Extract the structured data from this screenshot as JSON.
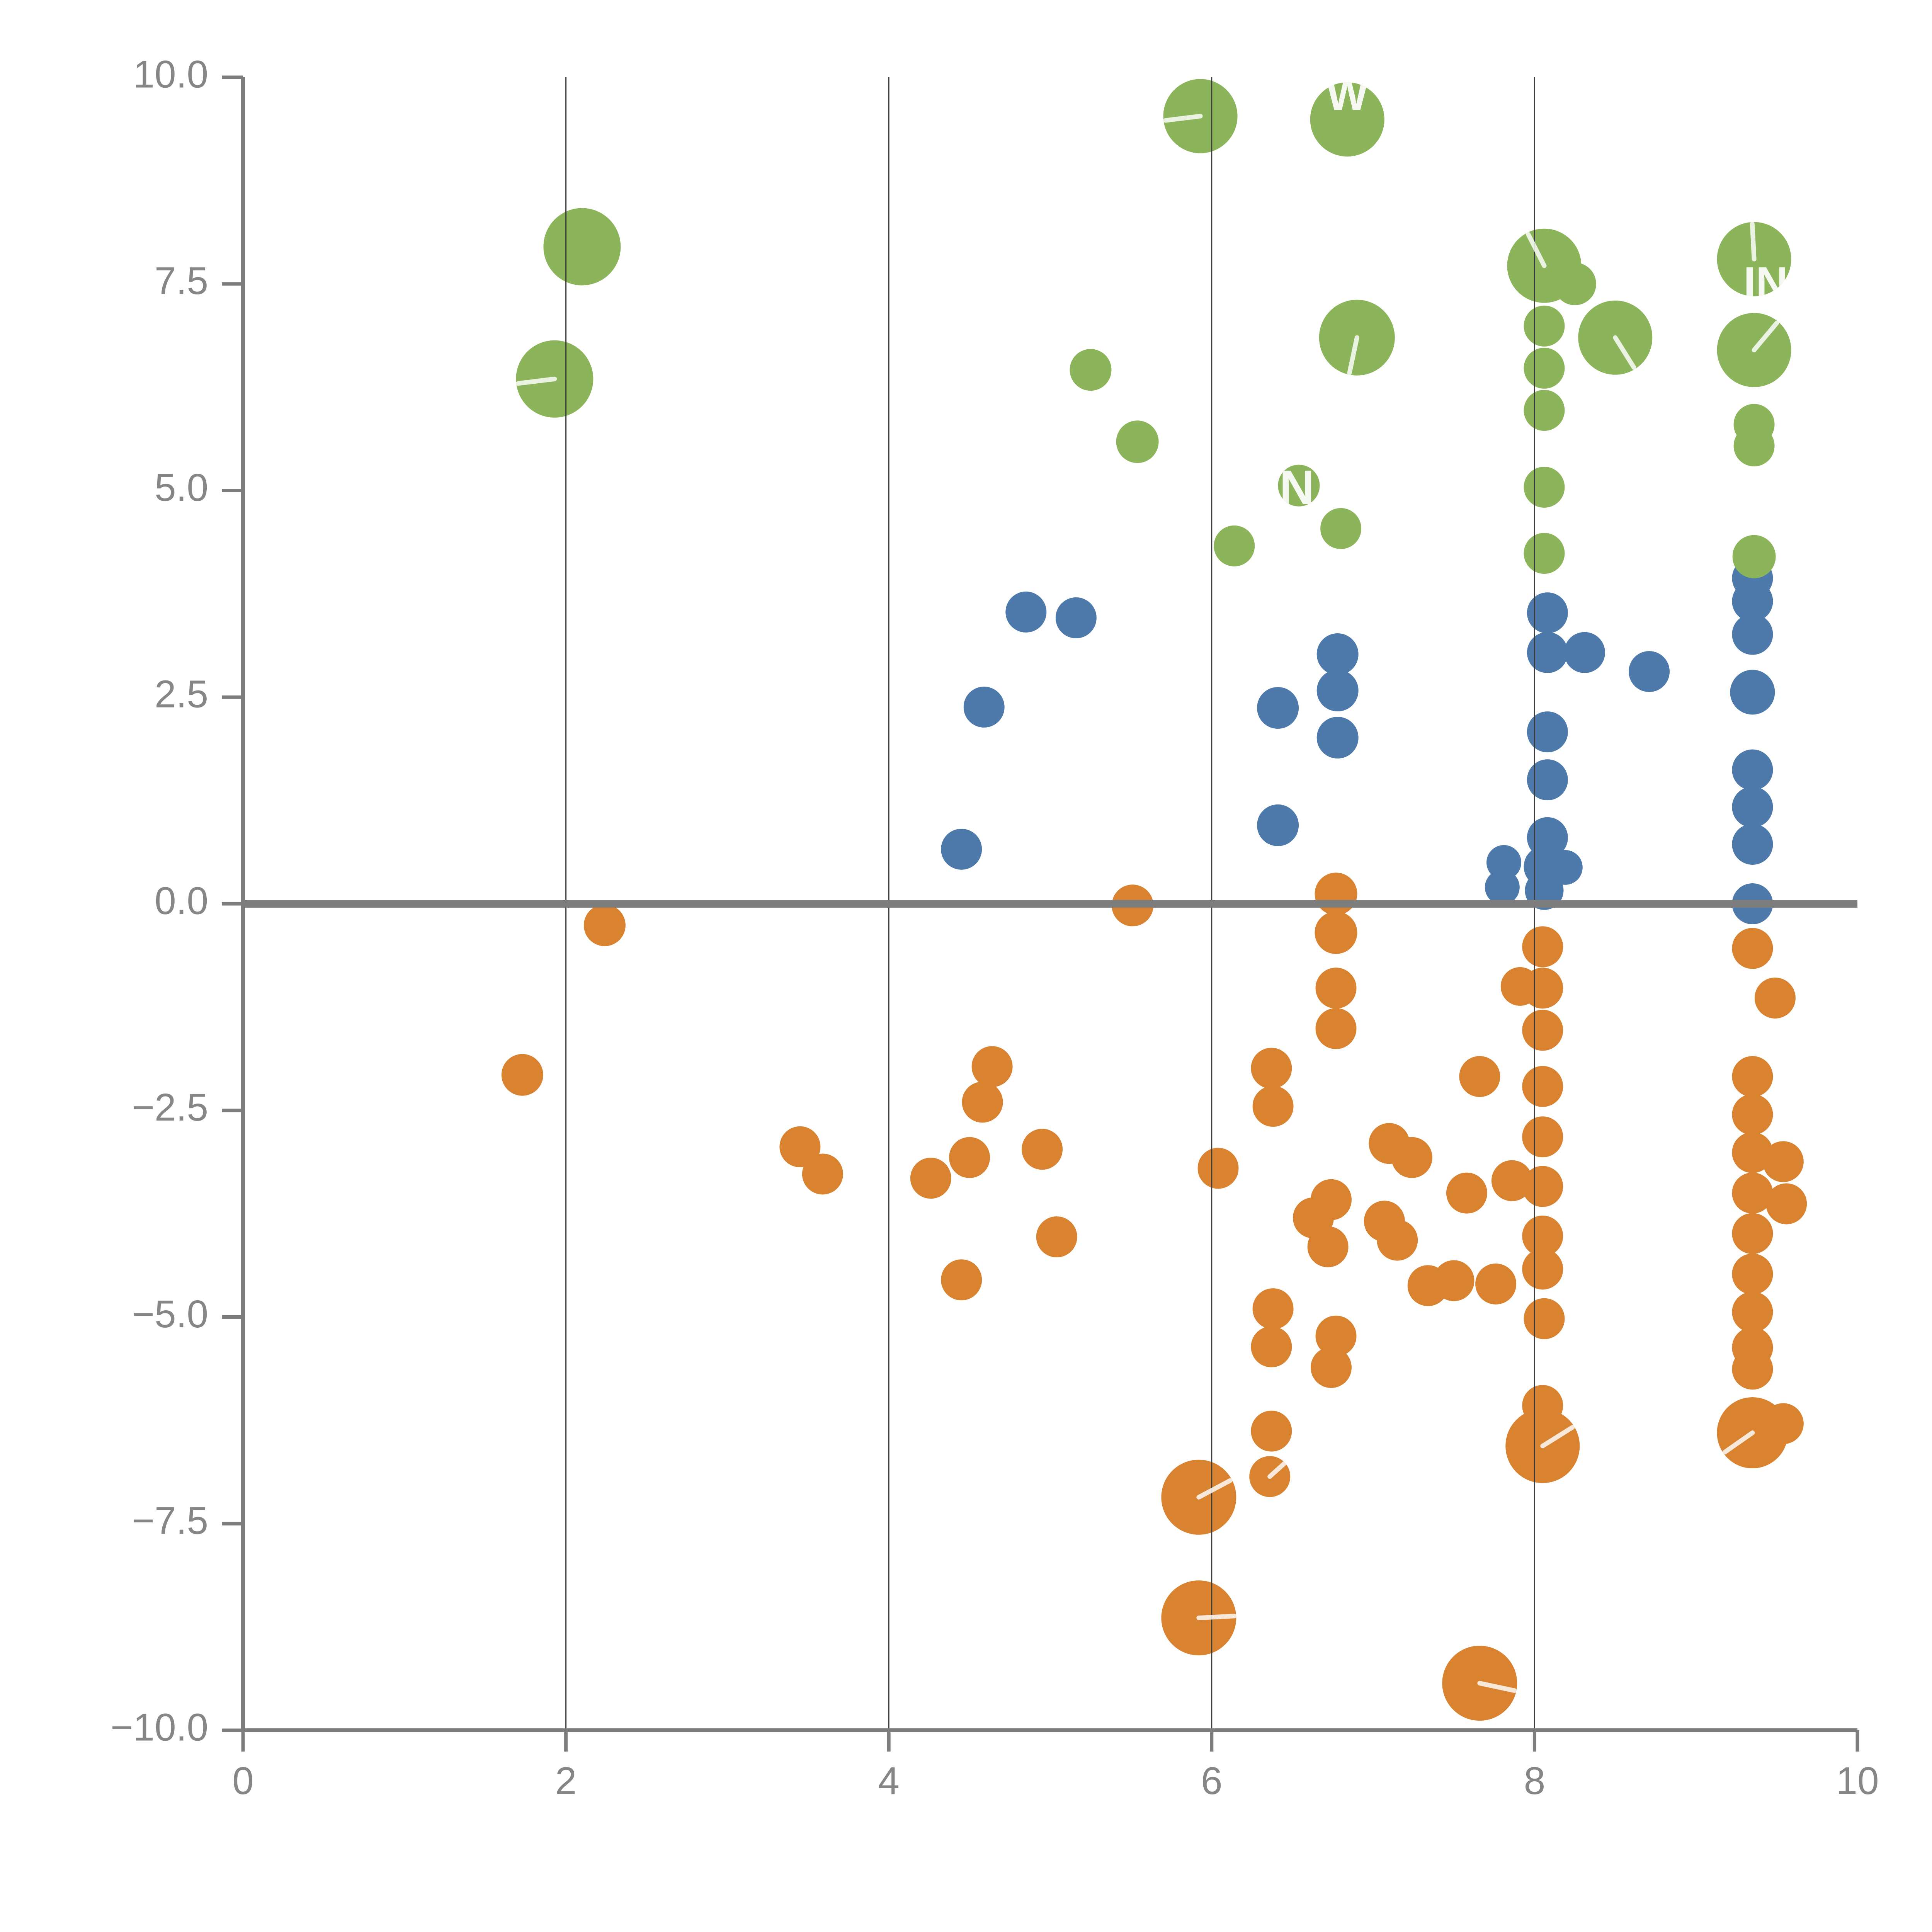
{
  "page": {
    "background": "#ffffff"
  },
  "chart_data": {
    "type": "scatter",
    "title": "",
    "xlabel": "",
    "ylabel": "",
    "legend": "none",
    "x_axis": {
      "domain": [
        0,
        10
      ],
      "ticks": [
        0,
        2,
        4,
        6,
        8,
        10
      ],
      "tick_labels": [
        "0",
        "2",
        "4",
        "6",
        "8",
        "10"
      ],
      "gridlines": [
        2,
        4,
        6,
        8
      ]
    },
    "y_axis": {
      "domain": [
        -10,
        10
      ],
      "ticks": [
        10,
        7.5,
        5,
        2.5,
        0,
        -2.5,
        -5,
        -7.5,
        -10
      ],
      "tick_labels": [
        "10.0",
        "7.5",
        "5.0",
        "2.5",
        "0.0",
        "−2.5",
        "−5.0",
        "−7.5",
        "−10.0"
      ]
    },
    "zero_line_y": 0,
    "colors": {
      "green": "#8cb45a",
      "blue": "#4d79ab",
      "orange": "#d9822f",
      "axis": "#7d7d7d",
      "grid": "#3a3a3a",
      "tick_label": "#868686",
      "hand": "#ffffff"
    },
    "point_format": [
      "x",
      "y",
      "radius_px",
      "hand_angle_deg_or_null",
      "white_text",
      "text_dx",
      "text_dy",
      "text_size"
    ],
    "series": [
      {
        "name": "orange",
        "color_key": "orange",
        "points": [
          [
            5.51,
            -0.02,
            54
          ],
          [
            2.24,
            -0.26,
            54
          ],
          [
            1.73,
            -2.07,
            54
          ],
          [
            3.45,
            -2.94,
            53
          ],
          [
            3.59,
            -3.27,
            53
          ],
          [
            4.26,
            -3.32,
            53
          ],
          [
            4.64,
            -1.97,
            53
          ],
          [
            4.58,
            -2.4,
            53
          ],
          [
            4.5,
            -3.07,
            53
          ],
          [
            4.95,
            -2.97,
            53
          ],
          [
            5.04,
            -4.03,
            53
          ],
          [
            4.45,
            -4.55,
            53
          ],
          [
            6.04,
            -3.2,
            53
          ],
          [
            6.37,
            -1.99,
            53
          ],
          [
            6.38,
            -2.45,
            53
          ],
          [
            6.63,
            -3.8,
            53
          ],
          [
            6.74,
            -3.58,
            53
          ],
          [
            6.72,
            -4.15,
            53
          ],
          [
            7.07,
            -3.84,
            53
          ],
          [
            7.15,
            -4.07,
            53
          ],
          [
            7.34,
            -4.62,
            53
          ],
          [
            7.5,
            -4.56,
            53
          ],
          [
            7.76,
            -4.6,
            53
          ],
          [
            6.38,
            -4.9,
            53
          ],
          [
            6.37,
            -5.36,
            53
          ],
          [
            6.37,
            -6.38,
            53
          ],
          [
            6.74,
            -5.61,
            53
          ],
          [
            7.66,
            -2.09,
            53
          ],
          [
            7.1,
            -2.9,
            53
          ],
          [
            7.24,
            -3.07,
            53
          ],
          [
            7.58,
            -3.5,
            53
          ],
          [
            7.86,
            -3.35,
            53
          ],
          [
            6.77,
            -5.23,
            53
          ],
          [
            6.77,
            0.12,
            55
          ],
          [
            6.77,
            -0.35,
            55
          ],
          [
            6.77,
            -1.02,
            53
          ],
          [
            6.77,
            -1.51,
            53
          ],
          [
            8.05,
            -0.52,
            53
          ],
          [
            7.91,
            -1.0,
            50
          ],
          [
            8.05,
            -1.02,
            53
          ],
          [
            8.05,
            -1.53,
            53
          ],
          [
            8.05,
            -2.21,
            53
          ],
          [
            8.05,
            -2.82,
            53
          ],
          [
            8.05,
            -3.42,
            53
          ],
          [
            8.05,
            -4.02,
            53
          ],
          [
            8.05,
            -4.42,
            53
          ],
          [
            8.06,
            -5.02,
            53
          ],
          [
            8.05,
            -6.07,
            53
          ],
          [
            8.05,
            -6.56,
            96,
            32
          ],
          [
            9.35,
            -0.54,
            53
          ],
          [
            9.49,
            -1.14,
            53
          ],
          [
            9.35,
            -2.09,
            53
          ],
          [
            9.35,
            -2.55,
            53
          ],
          [
            9.35,
            -3.01,
            53
          ],
          [
            9.54,
            -3.12,
            53
          ],
          [
            9.56,
            -3.63,
            53
          ],
          [
            9.35,
            -3.5,
            53
          ],
          [
            9.35,
            -3.99,
            53
          ],
          [
            9.35,
            -4.48,
            53
          ],
          [
            9.35,
            -4.94,
            53
          ],
          [
            9.35,
            -5.37,
            53
          ],
          [
            9.35,
            -5.63,
            53
          ],
          [
            9.54,
            -6.29,
            53
          ],
          [
            9.35,
            -6.4,
            92,
            215
          ],
          [
            5.92,
            -7.18,
            97,
            28
          ],
          [
            6.36,
            -6.93,
            53,
            42
          ],
          [
            5.92,
            -8.64,
            97,
            3
          ],
          [
            7.66,
            -9.43,
            97,
            -12
          ]
        ]
      },
      {
        "name": "blue",
        "color_key": "blue",
        "points": [
          [
            4.85,
            3.53,
            53
          ],
          [
            5.16,
            3.46,
            53
          ],
          [
            4.59,
            2.38,
            53
          ],
          [
            4.45,
            0.66,
            53
          ],
          [
            6.41,
            2.37,
            54
          ],
          [
            6.78,
            3.02,
            54
          ],
          [
            6.78,
            2.58,
            54
          ],
          [
            6.78,
            2.01,
            54
          ],
          [
            6.41,
            0.95,
            54
          ],
          [
            8.08,
            3.52,
            53
          ],
          [
            8.08,
            3.04,
            53
          ],
          [
            8.31,
            3.04,
            53
          ],
          [
            8.71,
            2.81,
            53
          ],
          [
            8.08,
            2.08,
            53
          ],
          [
            8.08,
            1.5,
            53
          ],
          [
            8.08,
            0.8,
            53
          ],
          [
            8.06,
            0.45,
            53
          ],
          [
            8.06,
            0.16,
            50
          ],
          [
            7.81,
            0.5,
            45
          ],
          [
            7.8,
            0.2,
            45
          ],
          [
            8.19,
            0.44,
            45
          ],
          [
            9.35,
            3.94,
            53
          ],
          [
            9.35,
            3.66,
            53
          ],
          [
            9.35,
            3.26,
            53
          ],
          [
            9.35,
            2.56,
            58
          ],
          [
            9.35,
            1.62,
            53
          ],
          [
            9.35,
            1.17,
            53
          ],
          [
            9.35,
            0.72,
            53
          ],
          [
            9.35,
            0.0,
            53
          ]
        ]
      },
      {
        "name": "green",
        "color_key": "green",
        "points": [
          [
            5.93,
            9.53,
            96,
            187
          ],
          [
            6.84,
            9.49,
            96,
            null,
            "W",
            0,
            -55,
            115
          ],
          [
            2.1,
            7.95,
            100
          ],
          [
            1.93,
            6.35,
            100,
            187
          ],
          [
            5.25,
            6.46,
            54
          ],
          [
            5.54,
            5.59,
            55
          ],
          [
            6.9,
            6.85,
            98,
            258
          ],
          [
            6.54,
            5.06,
            54,
            null,
            "N",
            -5,
            15,
            125
          ],
          [
            6.14,
            4.33,
            53
          ],
          [
            6.8,
            4.54,
            53
          ],
          [
            8.25,
            7.5,
            55
          ],
          [
            8.06,
            7.72,
            96,
            117
          ],
          [
            8.06,
            6.99,
            53
          ],
          [
            8.06,
            6.48,
            53
          ],
          [
            8.06,
            5.97,
            53
          ],
          [
            8.06,
            5.04,
            53
          ],
          [
            8.06,
            4.24,
            53
          ],
          [
            8.5,
            6.85,
            96,
            302
          ],
          [
            9.36,
            7.8,
            96,
            93,
            "IN",
            30,
            70,
            115
          ],
          [
            9.36,
            6.7,
            96,
            50
          ],
          [
            9.36,
            5.8,
            53
          ],
          [
            9.36,
            5.54,
            53
          ],
          [
            9.36,
            4.2,
            56
          ]
        ]
      }
    ]
  }
}
